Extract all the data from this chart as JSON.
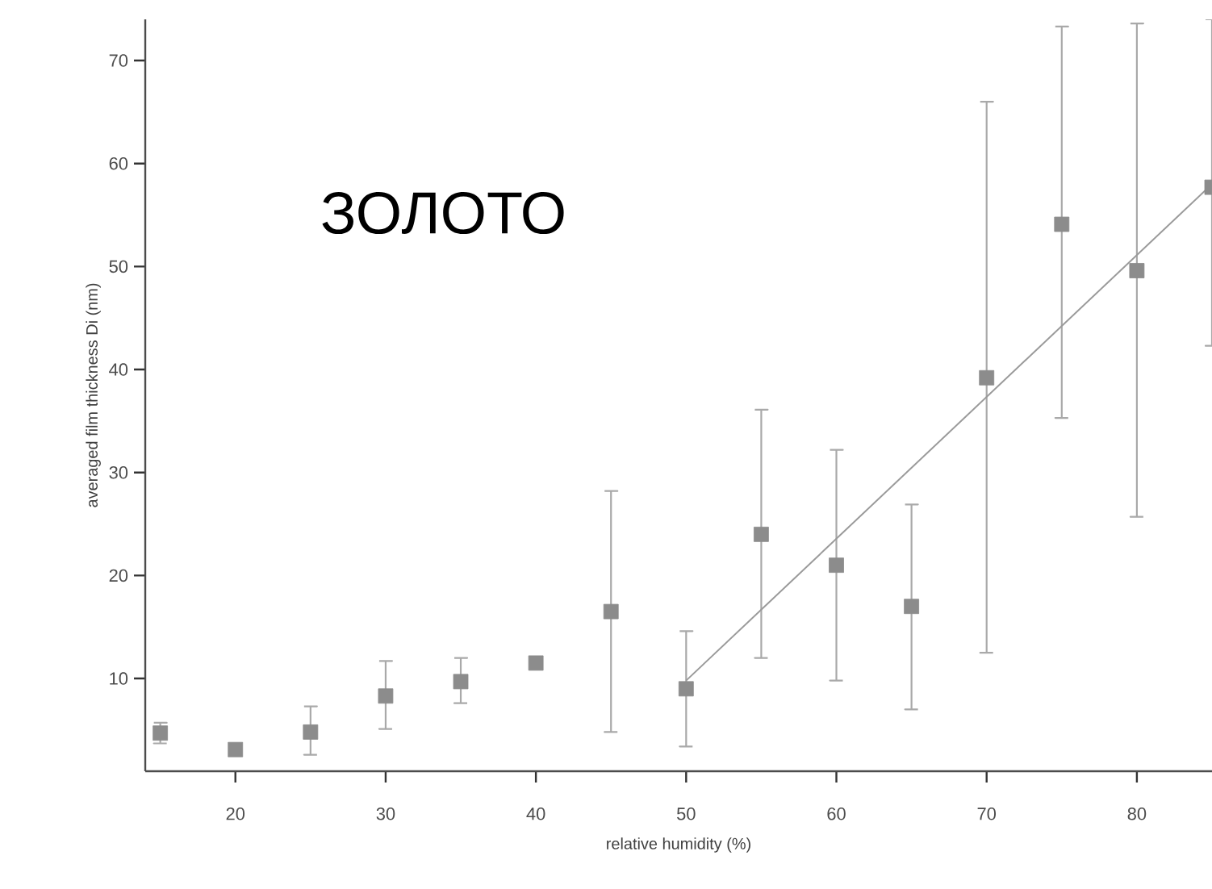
{
  "chart_data": {
    "type": "scatter",
    "xlabel": "relative humidity (%)",
    "ylabel": "averaged film thickness Di (nm)",
    "annotations": [
      "ЗОЛОТО"
    ],
    "xlim": [
      14,
      85
    ],
    "ylim": [
      1,
      74
    ],
    "xticks": [
      20,
      30,
      40,
      50,
      60,
      70,
      80
    ],
    "yticks": [
      10,
      20,
      30,
      40,
      50,
      60,
      70
    ],
    "grid": false,
    "marker": "square",
    "series": [
      {
        "color": "#8c8c8c",
        "x": [
          15,
          20,
          25,
          30,
          35,
          40,
          45,
          50,
          55,
          60,
          65,
          70,
          75,
          80,
          85
        ],
        "values": [
          4.7,
          3.1,
          4.8,
          8.3,
          9.7,
          11.5,
          16.5,
          9.0,
          24.0,
          21.0,
          17.0,
          39.2,
          54.1,
          49.6,
          57.7
        ],
        "errors": [
          [
            3.7,
            5.7
          ],
          null,
          [
            2.6,
            7.3
          ],
          [
            5.1,
            11.7
          ],
          [
            7.6,
            12.0
          ],
          null,
          [
            4.8,
            28.2
          ],
          [
            3.4,
            14.6
          ],
          [
            12.0,
            36.1
          ],
          [
            9.8,
            32.2
          ],
          [
            7.0,
            26.9
          ],
          [
            12.5,
            66.0
          ],
          [
            35.3,
            73.3
          ],
          [
            25.7,
            73.6
          ],
          [
            42.3,
            74
          ]
        ]
      },
      {
        "type": "line",
        "color": "#9a9a9a",
        "line_style": "solid",
        "marker": "none",
        "x": [
          50,
          85
        ],
        "values": [
          9.8,
          58
        ]
      }
    ]
  }
}
